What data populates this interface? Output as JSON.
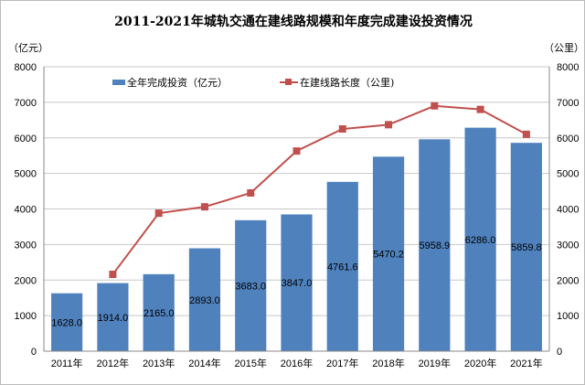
{
  "chart_data": {
    "type": "bar+line",
    "title": "2011-2021年城轨交通在建线路规模和年度完成建设投资情况",
    "y_left_unit": "（亿元）",
    "y_right_unit": "（公里）",
    "ylim": [
      0,
      8000
    ],
    "y_ticks": [
      "0",
      "1000",
      "2000",
      "3000",
      "4000",
      "5000",
      "6000",
      "7000",
      "8000"
    ],
    "grid": true,
    "legend_position": "top",
    "categories": [
      "2011年",
      "2012年",
      "2013年",
      "2014年",
      "2015年",
      "2016年",
      "2017年",
      "2018年",
      "2019年",
      "2020年",
      "2021年"
    ],
    "series": [
      {
        "name": "全年完成投资（亿元）",
        "type": "bar",
        "color": "#4F81BD",
        "values": [
          1628.0,
          1914.0,
          2165.0,
          2893.0,
          3683.0,
          3847.0,
          4761.6,
          5470.2,
          5958.9,
          6286.0,
          5859.8
        ],
        "labels": [
          "1628.0",
          "1914.0",
          "2165.0",
          "2893.0",
          "3683.0",
          "3847.0",
          "4761.6",
          "5470.2",
          "5958.9",
          "6286.0",
          "5859.8"
        ]
      },
      {
        "name": "在建线路长度（公里)",
        "type": "line",
        "color": "#C0504D",
        "values": [
          null,
          2160,
          3880,
          4060,
          4450,
          5630,
          6250,
          6370,
          6900,
          6800,
          6100
        ]
      }
    ]
  }
}
